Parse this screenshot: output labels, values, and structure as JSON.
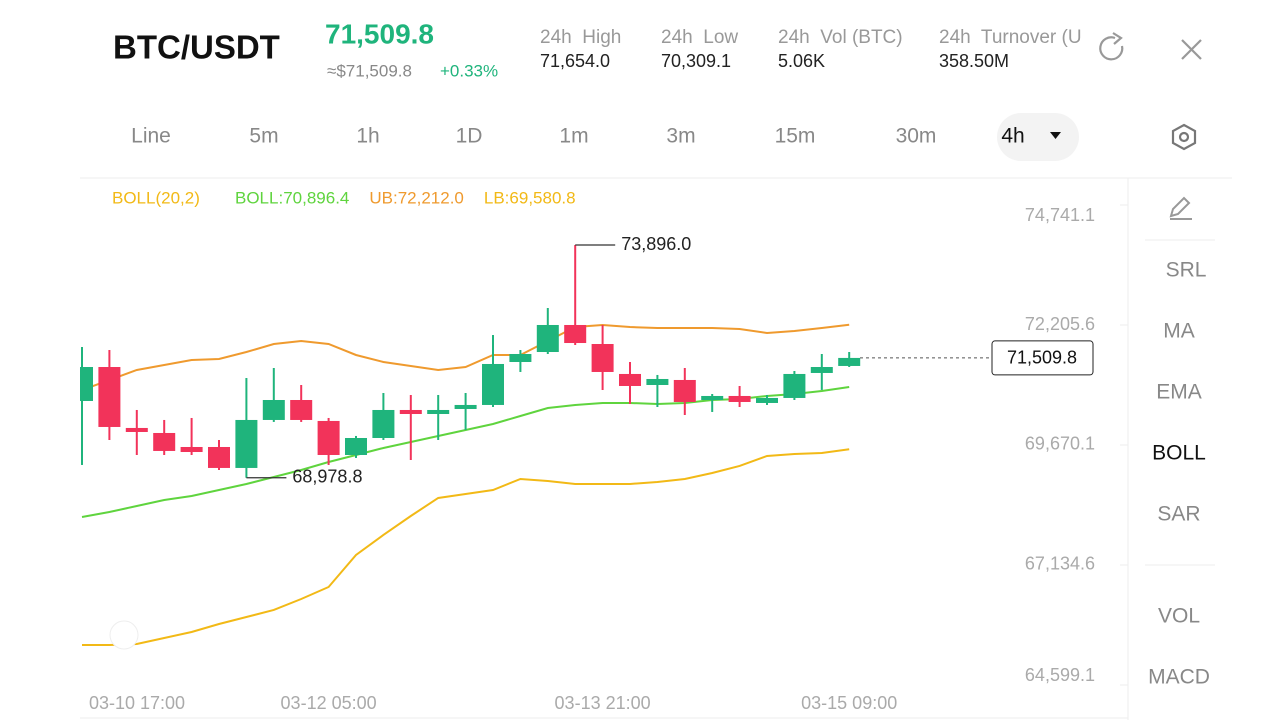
{
  "header": {
    "pair": "BTC/USDT",
    "price": "71,509.8",
    "approx": "≈$71,509.8",
    "change": "+0.33%",
    "stats": [
      {
        "label": "24h  High",
        "value": "71,654.0"
      },
      {
        "label": "24h  Low",
        "value": "70,309.1"
      },
      {
        "label": "24h  Vol (BTC)",
        "value": "5.06K"
      },
      {
        "label": "24h  Turnover (U",
        "value": "358.50M"
      }
    ]
  },
  "tabs": [
    "Line",
    "5m",
    "1h",
    "1D",
    "1m",
    "3m",
    "15m",
    "30m",
    "4h"
  ],
  "active_tab": 8,
  "side_menu": [
    "SRL",
    "MA",
    "EMA",
    "BOLL",
    "SAR",
    "VOL",
    "MACD"
  ],
  "active_menu": 3,
  "chart_data": {
    "type": "candlestick",
    "indicator": "BOLL(20,2)",
    "categories": [
      null,
      null,
      "03-10 17:00",
      null,
      null,
      null,
      null,
      null,
      null,
      "03-12 05:00",
      null,
      null,
      null,
      null,
      null,
      null,
      null,
      null,
      null,
      "03-13 21:00",
      null,
      null,
      null,
      null,
      null,
      null,
      null,
      null,
      "03-15 09:00"
    ],
    "open": [
      70600,
      71318,
      70030,
      69924,
      69628,
      69628,
      69185,
      70199,
      70621,
      70178,
      69459,
      69818,
      70410,
      70325,
      70431,
      70516,
      71424,
      71635,
      72206,
      71804,
      71171,
      70938,
      71044,
      70621,
      70706,
      70558,
      70664,
      71192,
      71340
    ],
    "high": [
      71741,
      71677,
      70410,
      70199,
      70241,
      69776,
      71086,
      71297,
      70938,
      70241,
      69861,
      70769,
      70727,
      70727,
      70769,
      71994,
      71677,
      72565,
      73896,
      72206,
      71424,
      71150,
      71297,
      70748,
      70917,
      70727,
      71234,
      71593,
      71635
    ],
    "low": [
      69248,
      69776,
      69459,
      69459,
      69459,
      69142,
      68978.8,
      70157,
      70157,
      69248,
      69396,
      69776,
      69353,
      69776,
      69987,
      70473,
      71213,
      71593,
      71783,
      70833,
      70537,
      70473,
      70304,
      70368,
      70473,
      70516,
      70621,
      70833,
      71318
    ],
    "close": [
      71318,
      70051,
      69945,
      69544,
      69522,
      69185,
      70199,
      70621,
      70199,
      69459,
      69818,
      70410,
      70325,
      70410,
      70516,
      71382,
      71593,
      72206,
      71825,
      71213,
      70917,
      71065,
      70579,
      70706,
      70579,
      70664,
      71171,
      71318,
      71509.8
    ],
    "up_color": "#1fb47c",
    "down_color": "#f2335a",
    "series": [
      {
        "name": "BOLL:70,896.4",
        "color": "#5fd43e",
        "values": [
          68149,
          68254,
          68381,
          68508,
          68592,
          68719,
          68846,
          68994,
          69142,
          69311,
          69459,
          69607,
          69734,
          69861,
          69987,
          70114,
          70283,
          70452,
          70516,
          70558,
          70558,
          70537,
          70558,
          70621,
          70642,
          70706,
          70748,
          70811,
          70896.4
        ]
      },
      {
        "name": "UB:72,212.0",
        "color": "#ef9a2e",
        "values": [
          70832,
          71043,
          71255,
          71360,
          71466,
          71487,
          71635,
          71804,
          71868,
          71804,
          71572,
          71424,
          71340,
          71255,
          71318,
          71572,
          71572,
          71868,
          72163,
          72206,
          72163,
          72142,
          72142,
          72142,
          72121,
          72037,
          72079,
          72142,
          72212
        ]
      },
      {
        "name": "LB:69,580.8",
        "color": "#f2b916",
        "values": [
          65444,
          65444,
          65465,
          65592,
          65719,
          65888,
          66036,
          66184,
          66416,
          66670,
          67346,
          67769,
          68170,
          68551,
          68635,
          68719,
          68952,
          68910,
          68846,
          68846,
          68846,
          68889,
          68952,
          69079,
          69227,
          69438,
          69480,
          69501,
          69580.8
        ]
      }
    ],
    "ylim": [
      64493.2,
      75269.5
    ],
    "yticks": [
      {
        "value": 74741.1,
        "label": "74,741.1"
      },
      {
        "value": 72205.6,
        "label": "72,205.6"
      },
      {
        "value": 69670.1,
        "label": "69,670.1"
      },
      {
        "value": 67134.6,
        "label": "67,134.6"
      },
      {
        "value": 64599.1,
        "label": "64,599.1"
      }
    ],
    "annotations": [
      {
        "value": 73896,
        "label": "73,896.0"
      },
      {
        "value": 68978.8,
        "label": "68,978.8"
      }
    ],
    "last_price": {
      "value": 71509.8,
      "label": "71,509.8"
    }
  }
}
